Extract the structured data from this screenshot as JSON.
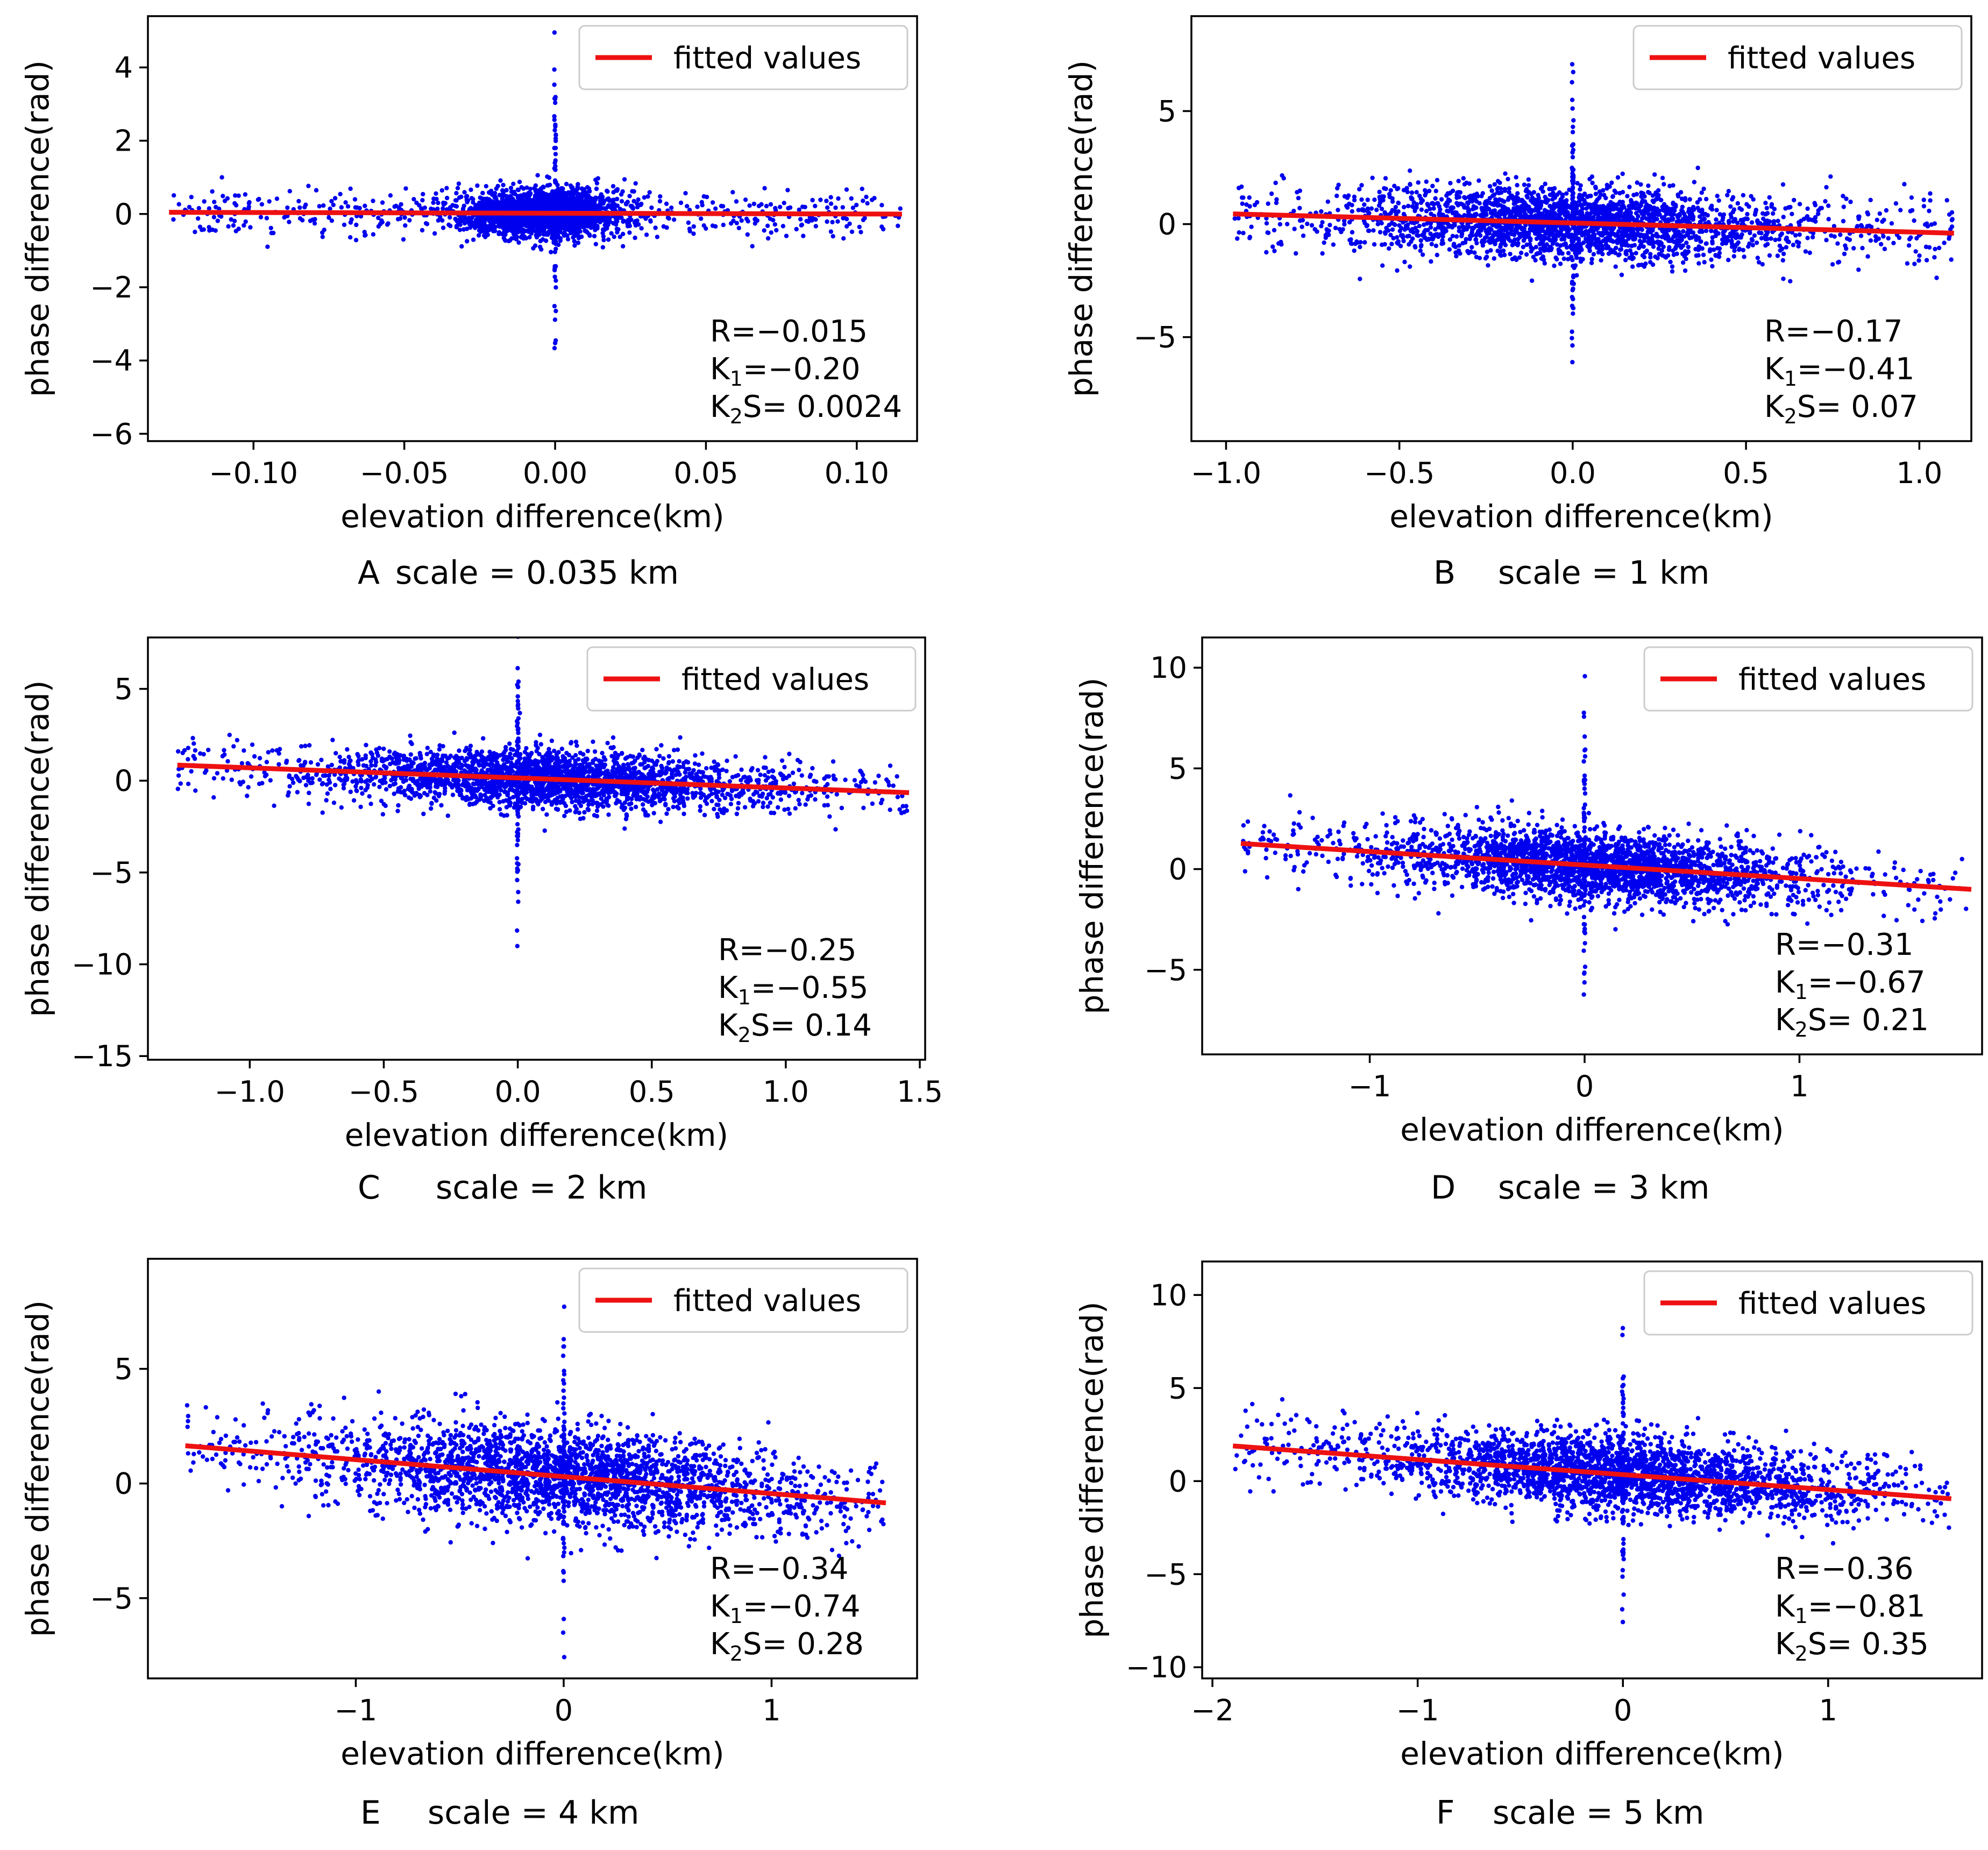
{
  "colors": {
    "points": "#0000ee",
    "fit_line": "#ee1111",
    "axes": "#000000",
    "legend_border": "#cccccc"
  },
  "chart_data": [
    {
      "panel": "A",
      "type": "scatter",
      "caption_letter": "A",
      "caption_scale": "scale = 0.035 km",
      "xlabel": "elevation difference(km)",
      "ylabel": "phase difference(rad)",
      "xlim": [
        -0.135,
        0.12
      ],
      "ylim": [
        -6.2,
        5.4
      ],
      "xticks": [
        -0.1,
        -0.05,
        0.0,
        0.05,
        0.1
      ],
      "xtick_labels": [
        "−0.10",
        "−0.05",
        "0.00",
        "0.05",
        "0.10"
      ],
      "yticks": [
        -6,
        -4,
        -2,
        0,
        2,
        4
      ],
      "ytick_labels": [
        "−6",
        "−4",
        "−2",
        "0",
        "2",
        "4"
      ],
      "legend_label": "fitted values",
      "fit": {
        "x_range": [
          -0.128,
          0.115
        ],
        "slope": -0.2,
        "intercept": 0.02
      },
      "cloud": {
        "x_center": -0.005,
        "x_spread": 0.013,
        "x_min": -0.128,
        "x_max": 0.115,
        "y_spread": 0.33
      },
      "stats": {
        "R": "R=−0.015",
        "K1_label": "K",
        "K1_sub": "1",
        "K1_value": "=−0.20",
        "K2_label": "K",
        "K2_sub": "2",
        "K2_value": "S= 0.0024"
      }
    },
    {
      "panel": "B",
      "type": "scatter",
      "caption_letter": "B",
      "caption_scale": "scale = 1 km",
      "xlabel": "elevation difference(km)",
      "ylabel": "phase difference(rad)",
      "xlim": [
        -1.1,
        1.15
      ],
      "ylim": [
        -9.6,
        9.2
      ],
      "xticks": [
        -1.0,
        -0.5,
        0.0,
        0.5,
        1.0
      ],
      "xtick_labels": [
        "−1.0",
        "−0.5",
        "0.0",
        "0.5",
        "1.0"
      ],
      "yticks": [
        -5,
        0,
        5
      ],
      "ytick_labels": [
        "−5",
        "0",
        "5"
      ],
      "legend_label": "fitted values",
      "fit": {
        "x_range": [
          -0.98,
          1.1
        ],
        "slope": -0.41,
        "intercept": 0.05
      },
      "cloud": {
        "x_center": 0.0,
        "x_spread": 0.3,
        "x_min": -0.98,
        "x_max": 1.1,
        "y_spread": 0.8
      },
      "stats": {
        "R": "R=−0.17",
        "K1_label": "K",
        "K1_sub": "1",
        "K1_value": "=−0.41",
        "K2_label": "K",
        "K2_sub": "2",
        "K2_value": "S= 0.07"
      }
    },
    {
      "panel": "C",
      "type": "scatter",
      "caption_letter": "C",
      "caption_scale": "scale = 2 km",
      "xlabel": "elevation difference(km)",
      "ylabel": "phase difference(rad)",
      "xlim": [
        -1.38,
        1.52
      ],
      "ylim": [
        -15.2,
        7.8
      ],
      "xticks": [
        -1.0,
        -0.5,
        0.0,
        0.5,
        1.0,
        1.5
      ],
      "xtick_labels": [
        "−1.0",
        "−0.5",
        "0.0",
        "0.5",
        "1.0",
        "1.5"
      ],
      "yticks": [
        -15,
        -10,
        -5,
        0,
        5
      ],
      "ytick_labels": [
        "−15",
        "−10",
        "−5",
        "0",
        "5"
      ],
      "legend_label": "fitted values",
      "fit": {
        "x_range": [
          -1.27,
          1.46
        ],
        "slope": -0.55,
        "intercept": 0.15
      },
      "cloud": {
        "x_center": 0.1,
        "x_spread": 0.38,
        "x_min": -1.27,
        "x_max": 1.46,
        "y_spread": 0.8
      },
      "stats": {
        "R": "R=−0.25",
        "K1_label": "K",
        "K1_sub": "1",
        "K1_value": "=−0.55",
        "K2_label": "K",
        "K2_sub": "2",
        "K2_value": "S= 0.14"
      }
    },
    {
      "panel": "D",
      "type": "scatter",
      "caption_letter": "D",
      "caption_scale": "scale = 3 km",
      "xlabel": "elevation difference(km)",
      "ylabel": "phase difference(rad)",
      "xlim": [
        -1.78,
        1.85
      ],
      "ylim": [
        -9.2,
        11.5
      ],
      "xticks": [
        -1,
        0,
        1
      ],
      "xtick_labels": [
        "−1",
        "0",
        "1"
      ],
      "yticks": [
        -5,
        0,
        5,
        10
      ],
      "ytick_labels": [
        "−5",
        "0",
        "5",
        "10"
      ],
      "legend_label": "fitted values",
      "fit": {
        "x_range": [
          -1.6,
          1.8
        ],
        "slope": -0.67,
        "intercept": 0.2
      },
      "cloud": {
        "x_center": 0.05,
        "x_spread": 0.45,
        "x_min": -1.6,
        "x_max": 1.8,
        "y_spread": 0.85
      },
      "stats": {
        "R": "R=−0.31",
        "K1_label": "K",
        "K1_sub": "1",
        "K1_value": "=−0.67",
        "K2_label": "K",
        "K2_sub": "2",
        "K2_value": "S= 0.21"
      }
    },
    {
      "panel": "E",
      "type": "scatter",
      "caption_letter": "E",
      "caption_scale": "scale = 4 km",
      "xlabel": "elevation difference(km)",
      "ylabel": "phase difference(rad)",
      "xlim": [
        -2.0,
        1.7
      ],
      "ylim": [
        -8.5,
        9.8
      ],
      "xticks": [
        -1,
        0,
        1
      ],
      "xtick_labels": [
        "−1",
        "0",
        "1"
      ],
      "yticks": [
        -5,
        0,
        5
      ],
      "ytick_labels": [
        "−5",
        "0",
        "5"
      ],
      "legend_label": "fitted values",
      "fit": {
        "x_range": [
          -1.82,
          1.55
        ],
        "slope": -0.74,
        "intercept": 0.3
      },
      "cloud": {
        "x_center": 0.0,
        "x_spread": 0.55,
        "x_min": -1.82,
        "x_max": 1.55,
        "y_spread": 1.05
      },
      "stats": {
        "R": "R=−0.34",
        "K1_label": "K",
        "K1_sub": "1",
        "K1_value": "=−0.74",
        "K2_label": "K",
        "K2_sub": "2",
        "K2_value": "S= 0.28"
      }
    },
    {
      "panel": "F",
      "type": "scatter",
      "caption_letter": "F",
      "caption_scale": "scale = 5 km",
      "xlabel": "elevation difference(km)",
      "ylabel": "phase difference(rad)",
      "xlim": [
        -2.05,
        1.75
      ],
      "ylim": [
        -10.6,
        11.8
      ],
      "xticks": [
        -2,
        -1,
        0,
        1
      ],
      "xtick_labels": [
        "−2",
        "−1",
        "0",
        "1"
      ],
      "yticks": [
        -10,
        -5,
        0,
        5,
        10
      ],
      "ytick_labels": [
        "−10",
        "−5",
        "0",
        "5",
        "10"
      ],
      "legend_label": "fitted values",
      "fit": {
        "x_range": [
          -1.9,
          1.6
        ],
        "slope": -0.81,
        "intercept": 0.35
      },
      "cloud": {
        "x_center": 0.0,
        "x_spread": 0.55,
        "x_min": -1.9,
        "x_max": 1.6,
        "y_spread": 1.0
      },
      "stats": {
        "R": "R=−0.36",
        "K1_label": "K",
        "K1_sub": "1",
        "K1_value": "=−0.81",
        "K2_label": "K",
        "K2_sub": "2",
        "K2_value": "S= 0.35"
      }
    }
  ]
}
